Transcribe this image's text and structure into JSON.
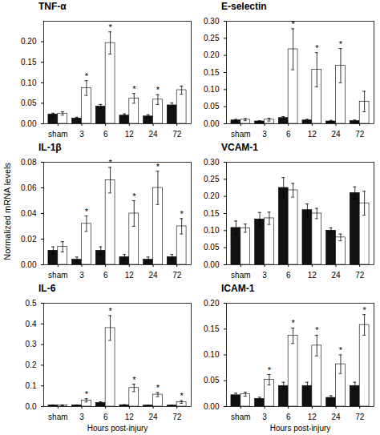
{
  "chart_data": [
    {
      "type": "bar",
      "title": "TNF-α",
      "categories": [
        "sham",
        "3",
        "6",
        "12",
        "24",
        "72"
      ],
      "series": [
        {
          "color": "#111111",
          "values": [
            0.023,
            0.013,
            0.042,
            0.02,
            0.018,
            0.045
          ],
          "errors": [
            0.003,
            0.003,
            0.005,
            0.004,
            0.004,
            0.006
          ],
          "stars": [
            null,
            null,
            null,
            null,
            null,
            null
          ]
        },
        {
          "color": "#ffffff",
          "values": [
            0.025,
            0.087,
            0.197,
            0.062,
            0.059,
            0.082
          ],
          "errors": [
            0.004,
            0.018,
            0.027,
            0.012,
            0.012,
            0.01
          ],
          "stars": [
            null,
            "*",
            "*",
            "*",
            "*",
            null
          ]
        }
      ],
      "ylim": [
        0,
        0.25
      ],
      "yticks": [
        {
          "value": 0,
          "label": "0.00"
        },
        0.05,
        {
          "value": 0.1,
          "label": "0.10"
        },
        0.15,
        {
          "value": 0.2,
          "label": "0.20"
        }
      ],
      "grid": false
    },
    {
      "type": "bar",
      "title": "E-selectin",
      "categories": [
        "sham",
        "3",
        "6",
        "12",
        "24",
        "72"
      ],
      "series": [
        {
          "color": "#111111",
          "values": [
            0.01,
            0.007,
            0.017,
            0.01,
            0.007,
            0.008
          ],
          "errors": [
            0.003,
            0.002,
            0.004,
            0.003,
            0.003,
            0.003
          ],
          "stars": [
            null,
            null,
            null,
            null,
            null,
            null
          ]
        },
        {
          "color": "#ffffff",
          "values": [
            0.012,
            0.012,
            0.218,
            0.158,
            0.17,
            0.065
          ],
          "errors": [
            0.003,
            0.004,
            0.06,
            0.05,
            0.05,
            0.03
          ],
          "stars": [
            null,
            null,
            "*",
            "*",
            "*",
            null
          ]
        }
      ],
      "ylim": [
        0,
        0.3
      ],
      "yticks": [
        {
          "value": 0,
          "label": "0.00"
        },
        0.05,
        {
          "value": 0.1,
          "label": "0.10"
        },
        0.15,
        {
          "value": 0.2,
          "label": "0.20"
        },
        0.25,
        {
          "value": 0.3,
          "label": "0.30"
        }
      ],
      "grid": false
    },
    {
      "type": "bar",
      "title": "IL-1β",
      "ylabel": "Normalized mRNA levels",
      "categories": [
        "sham",
        "3",
        "6",
        "12",
        "24",
        "72"
      ],
      "series": [
        {
          "color": "#111111",
          "values": [
            0.011,
            0.004,
            0.011,
            0.006,
            0.004,
            0.006
          ],
          "errors": [
            0.003,
            0.002,
            0.003,
            0.002,
            0.002,
            0.002
          ],
          "stars": [
            null,
            null,
            null,
            null,
            null,
            null
          ]
        },
        {
          "color": "#ffffff",
          "values": [
            0.014,
            0.032,
            0.066,
            0.04,
            0.06,
            0.03
          ],
          "errors": [
            0.004,
            0.006,
            0.01,
            0.01,
            0.013,
            0.006
          ],
          "stars": [
            null,
            "*",
            "*",
            "*",
            "*",
            "*"
          ]
        }
      ],
      "ylim": [
        0,
        0.08
      ],
      "yticks": [
        {
          "value": 0,
          "label": "0.00"
        },
        0.02,
        0.04,
        0.06,
        0.08
      ],
      "grid": false
    },
    {
      "type": "bar",
      "title": "VCAM-1",
      "categories": [
        "sham",
        "3",
        "6",
        "12",
        "24",
        "72"
      ],
      "series": [
        {
          "color": "#111111",
          "values": [
            0.108,
            0.133,
            0.225,
            0.16,
            0.1,
            0.21
          ],
          "errors": [
            0.02,
            0.02,
            0.03,
            0.018,
            0.008,
            0.018
          ],
          "stars": [
            null,
            null,
            null,
            null,
            null,
            null
          ]
        },
        {
          "color": "#ffffff",
          "values": [
            0.107,
            0.136,
            0.218,
            0.15,
            0.08,
            0.18
          ],
          "errors": [
            0.012,
            0.018,
            0.02,
            0.015,
            0.01,
            0.035
          ],
          "stars": [
            null,
            null,
            null,
            null,
            null,
            null
          ]
        }
      ],
      "ylim": [
        0,
        0.3
      ],
      "yticks": [
        {
          "value": 0,
          "label": "0.00"
        },
        0.05,
        {
          "value": 0.1,
          "label": "0.10"
        },
        0.15,
        {
          "value": 0.2,
          "label": "0.20"
        },
        0.25,
        {
          "value": 0.3,
          "label": "0.30"
        }
      ],
      "grid": false
    },
    {
      "type": "bar",
      "title": "IL-6",
      "xlabel": "Hours post-injury",
      "categories": [
        "sham",
        "3",
        "6",
        "12",
        "24",
        "72"
      ],
      "series": [
        {
          "color": "#111111",
          "values": [
            0.006,
            0.006,
            0.018,
            0.007,
            0.005,
            0.005
          ],
          "errors": [
            0.002,
            0.002,
            0.005,
            0.002,
            0.002,
            0.002
          ],
          "stars": [
            null,
            null,
            null,
            null,
            null,
            null
          ]
        },
        {
          "color": "#ffffff",
          "values": [
            0.006,
            0.03,
            0.38,
            0.09,
            0.058,
            0.022
          ],
          "errors": [
            0.002,
            0.008,
            0.06,
            0.018,
            0.01,
            0.006
          ],
          "stars": [
            null,
            "*",
            "*",
            "*",
            "*",
            "*"
          ]
        }
      ],
      "ylim": [
        0,
        0.5
      ],
      "yticks": [
        {
          "value": 0,
          "label": "0.0"
        },
        0.1,
        0.2,
        0.3,
        0.4,
        0.5
      ],
      "grid": false
    },
    {
      "type": "bar",
      "title": "ICAM-1",
      "xlabel": "Hours post-injury",
      "categories": [
        "sham",
        "3",
        "6",
        "12",
        "24",
        "72"
      ],
      "series": [
        {
          "color": "#111111",
          "values": [
            0.022,
            0.015,
            0.04,
            0.04,
            0.017,
            0.04
          ],
          "errors": [
            0.004,
            0.003,
            0.007,
            0.007,
            0.004,
            0.007
          ],
          "stars": [
            null,
            null,
            null,
            null,
            null,
            null
          ]
        },
        {
          "color": "#ffffff",
          "values": [
            0.024,
            0.052,
            0.137,
            0.118,
            0.082,
            0.158
          ],
          "errors": [
            0.004,
            0.01,
            0.015,
            0.02,
            0.018,
            0.02
          ],
          "stars": [
            null,
            "*",
            "*",
            "*",
            "*",
            "*"
          ]
        }
      ],
      "ylim": [
        0,
        0.2
      ],
      "yticks": [
        {
          "value": 0,
          "label": "0.00"
        },
        0.05,
        {
          "value": 0.1,
          "label": "0.10"
        },
        0.15,
        {
          "value": 0.2,
          "label": "0.20"
        }
      ],
      "grid": false
    }
  ]
}
